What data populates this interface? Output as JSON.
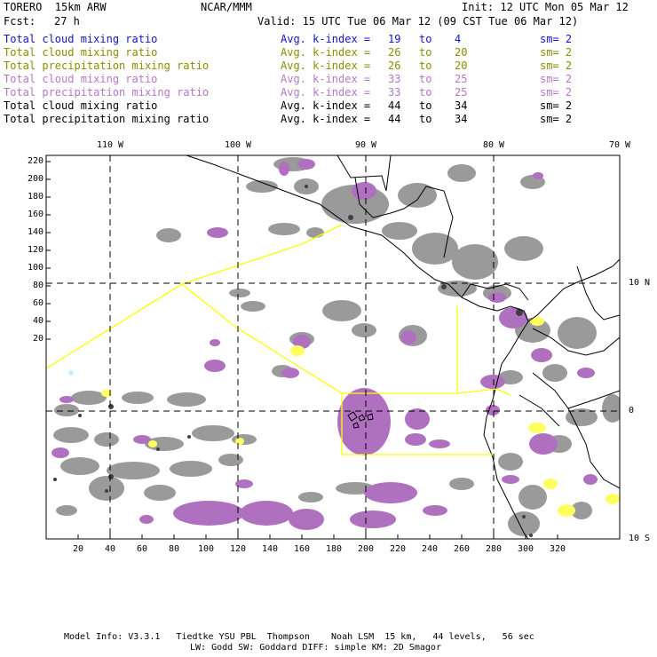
{
  "header": {
    "model_name": "TORERO  15km ARW",
    "org": "NCAR/MMM",
    "init": "Init: 12 UTC Mon 05 Mar 12",
    "fcst_label": "Fcst:",
    "fcst_value": "27 h",
    "valid": "Valid: 15 UTC Tue 06 Mar 12 (09 CST Tue 06 Mar 12)"
  },
  "legend": [
    {
      "field": "Total cloud mixing ratio",
      "avg": "Avg. k-index =",
      "from": "19",
      "to_word": "to",
      "to": "4",
      "sm": "sm= 2",
      "color": "#1414c8"
    },
    {
      "field": "Total cloud mixing ratio",
      "avg": "Avg. k-index =",
      "from": "26",
      "to_word": "to",
      "to": "20",
      "sm": "sm= 2",
      "color": "#8c8c00"
    },
    {
      "field": "Total precipitation mixing ratio",
      "avg": "Avg. k-index =",
      "from": "26",
      "to_word": "to",
      "to": "20",
      "sm": "sm= 2",
      "color": "#8c8c00"
    },
    {
      "field": "Total cloud mixing ratio",
      "avg": "Avg. k-index =",
      "from": "33",
      "to_word": "to",
      "to": "25",
      "sm": "sm= 2",
      "color": "#b478c8"
    },
    {
      "field": "Total precipitation mixing ratio",
      "avg": "Avg. k-index =",
      "from": "33",
      "to_word": "to",
      "to": "25",
      "sm": "sm= 2",
      "color": "#b478c8"
    },
    {
      "field": "Total cloud mixing ratio",
      "avg": "Avg. k-index =",
      "from": "44",
      "to_word": "to",
      "to": "34",
      "sm": "sm= 2",
      "color": "#000000"
    },
    {
      "field": "Total precipitation mixing ratio",
      "avg": "Avg. k-index =",
      "from": "44",
      "to_word": "to",
      "to": "34",
      "sm": "sm= 2",
      "color": "#000000"
    }
  ],
  "map": {
    "lon_labels": [
      "110 W",
      "100 W",
      "90 W",
      "80 W",
      "70 W"
    ],
    "lat_labels": [
      "10 N",
      "0",
      "10 S"
    ],
    "y_ticks": [
      "220",
      "200",
      "180",
      "160",
      "140",
      "120",
      "100",
      "80",
      "60",
      "40",
      "20"
    ],
    "x_ticks": [
      "20",
      "40",
      "60",
      "80",
      "100",
      "120",
      "140",
      "160",
      "180",
      "200",
      "220",
      "240",
      "260",
      "280",
      "300",
      "320"
    ],
    "colors": {
      "cloud_gray": "#9a9a9a",
      "cloud_dark": "#505050",
      "precip_purple": "#b070c0",
      "cloud_yellow": "#ffff60",
      "domain_yellow": "#ffff00",
      "coast": "#000000"
    }
  },
  "footer": {
    "line1": "Model Info: V3.3.1   Tiedtke YSU PBL  Thompson    Noah LSM  15 km,   44 levels,   56 sec",
    "line2": "LW: Godd SW: Goddard DIFF: simple KM: 2D Smagor"
  }
}
